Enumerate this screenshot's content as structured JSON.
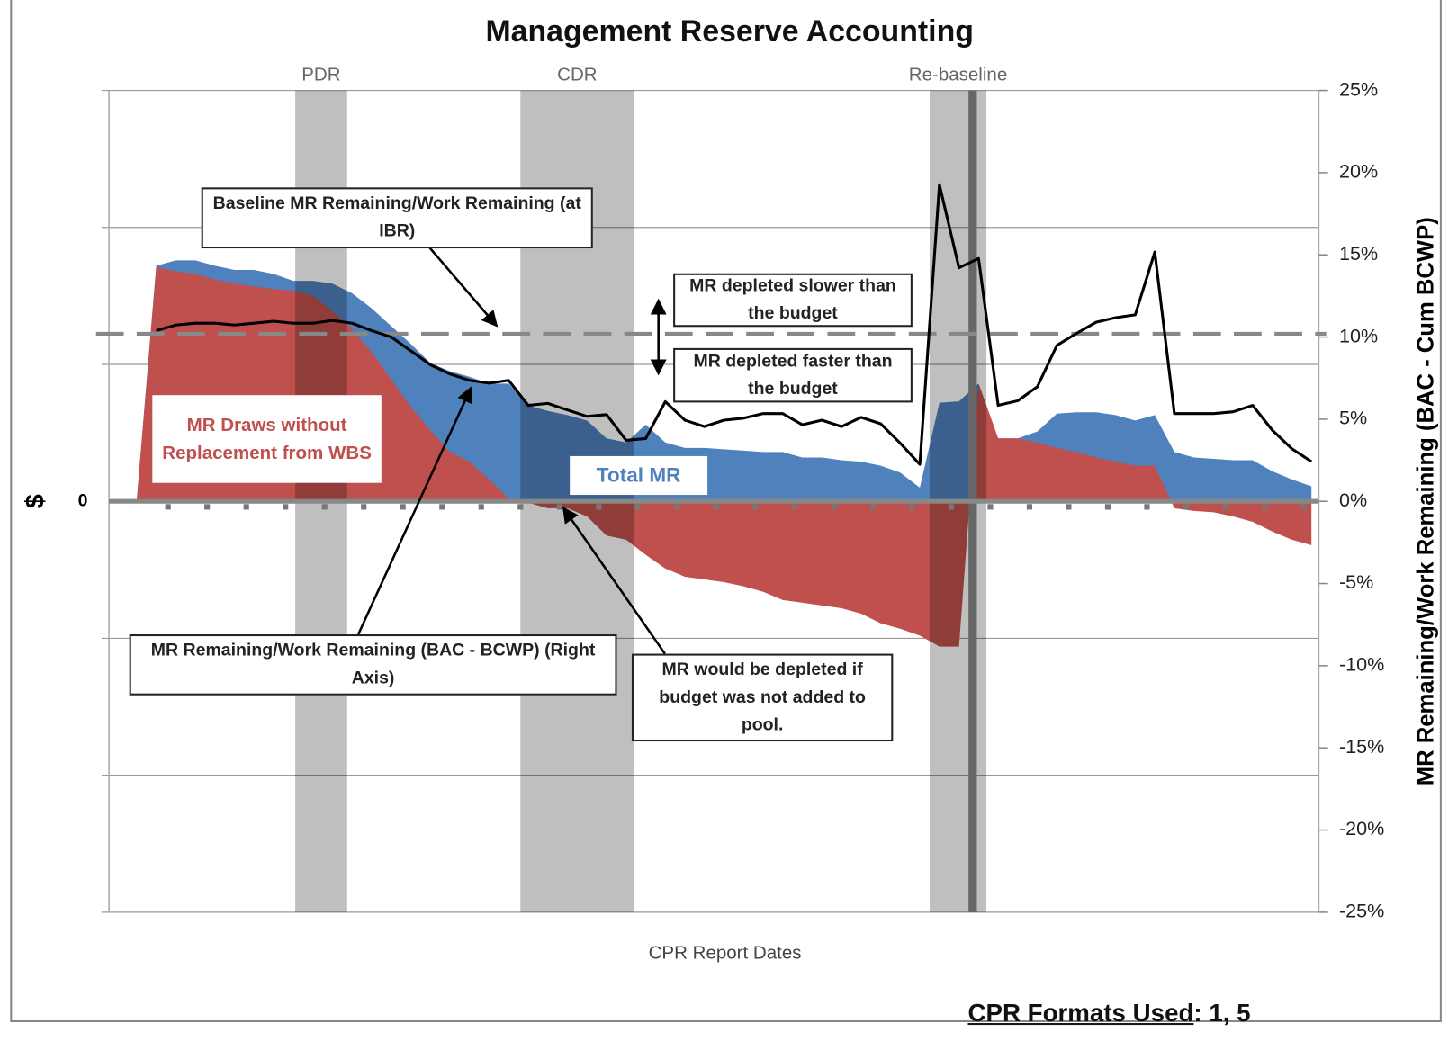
{
  "chart_data": {
    "type": "area",
    "title": "Management Reserve Accounting",
    "x_label": "CPR Report Dates",
    "y_label": "$",
    "y2_label": "MR Remaining/Work Remaining (BAC - Cum BCWP)",
    "categories": [
      null,
      null,
      null,
      null,
      null,
      null,
      null,
      null,
      null,
      null,
      null,
      null,
      null,
      null,
      null,
      null,
      null,
      null,
      null,
      null,
      null,
      null,
      null,
      null,
      null,
      null,
      null,
      null,
      null,
      null,
      null,
      null,
      null,
      null,
      null,
      null,
      null,
      null,
      null,
      null,
      null,
      null,
      null,
      null,
      null,
      null,
      null,
      null,
      null,
      null,
      null,
      null,
      null,
      null,
      null,
      null,
      null,
      null,
      null,
      null,
      null
    ],
    "ylim": [
      -3,
      3
    ],
    "yticks": [
      0
    ],
    "ygrid": [
      -3,
      -2,
      -1,
      1,
      2,
      3
    ],
    "y2lim": [
      -25,
      25
    ],
    "y2ticks": [
      {
        "value": 25,
        "label": "25%"
      },
      {
        "value": 20,
        "label": "20%"
      },
      {
        "value": 15,
        "label": "15%"
      },
      {
        "value": 10,
        "label": "10%"
      },
      {
        "value": 5,
        "label": "5%"
      },
      {
        "value": 0,
        "label": "0%"
      },
      {
        "value": -5,
        "label": "-5%"
      },
      {
        "value": -10,
        "label": "-10%"
      },
      {
        "value": -15,
        "label": "-15%"
      },
      {
        "value": -20,
        "label": "-20%"
      },
      {
        "value": -25,
        "label": "-25%"
      }
    ],
    "series": [
      {
        "name": "Total MR",
        "type": "area",
        "color": "#4f81bd",
        "values": [
          0,
          1.72,
          1.76,
          1.76,
          1.72,
          1.69,
          1.69,
          1.66,
          1.61,
          1.61,
          1.59,
          1.52,
          1.41,
          1.28,
          1.15,
          1.01,
          0.95,
          0.91,
          0.86,
          0.86,
          0.7,
          0.66,
          0.63,
          0.59,
          0.46,
          0.43,
          0.56,
          0.43,
          0.39,
          0.39,
          0.38,
          0.37,
          0.36,
          0.36,
          0.32,
          0.32,
          0.3,
          0.29,
          0.26,
          0.21,
          0.1,
          0.72,
          0.73,
          0.86,
          0.46,
          0.46,
          0.51,
          0.64,
          0.65,
          0.65,
          0.63,
          0.59,
          0.63,
          0.36,
          0.32,
          0.31,
          0.3,
          0.3,
          0.22,
          0.16,
          0.11
        ]
      },
      {
        "name": "MR Draws without Replacement from WBS",
        "type": "area",
        "color": "#c0504d",
        "values": [
          0,
          1.71,
          1.68,
          1.66,
          1.62,
          1.59,
          1.57,
          1.55,
          1.54,
          1.5,
          1.39,
          1.26,
          1.09,
          0.89,
          0.69,
          0.52,
          0.36,
          0.29,
          0.16,
          0.02,
          -0.01,
          -0.05,
          -0.05,
          -0.11,
          -0.25,
          -0.28,
          -0.39,
          -0.49,
          -0.55,
          -0.57,
          -0.59,
          -0.62,
          -0.66,
          -0.72,
          -0.74,
          -0.76,
          -0.78,
          -0.82,
          -0.89,
          -0.93,
          -0.98,
          -1.06,
          -1.06,
          0.86,
          0.46,
          0.46,
          0.43,
          0.39,
          0.36,
          0.32,
          0.29,
          0.26,
          0.26,
          -0.05,
          -0.07,
          -0.08,
          -0.11,
          -0.15,
          -0.22,
          -0.28,
          -0.32
        ]
      },
      {
        "name": "MR Remaining/Work Remaining (BAC - BCWP) (Right Axis)",
        "type": "line",
        "axis": "y2",
        "color": "#000000",
        "values": [
          null,
          10.39,
          10.73,
          10.84,
          10.84,
          10.73,
          10.84,
          10.96,
          10.84,
          10.84,
          11.01,
          10.84,
          10.39,
          10.0,
          9.16,
          8.31,
          7.75,
          7.36,
          7.19,
          7.36,
          5.84,
          5.96,
          5.56,
          5.17,
          5.28,
          3.71,
          3.82,
          6.07,
          4.94,
          4.55,
          4.94,
          5.06,
          5.34,
          5.34,
          4.66,
          4.94,
          4.55,
          5.11,
          4.72,
          3.54,
          2.25,
          19.27,
          14.21,
          14.78,
          5.84,
          6.12,
          6.97,
          9.49,
          10.22,
          10.9,
          11.18,
          11.35,
          15.17,
          5.34,
          5.34,
          5.34,
          5.45,
          5.84,
          4.33,
          3.2,
          2.42
        ]
      }
    ],
    "baseline": {
      "label": "Baseline MR Remaining/Work Remaining (at IBR)",
      "value": 10.2,
      "axis": "y2"
    },
    "milestones": [
      {
        "label": "PDR",
        "start": 8.1,
        "end": 10.75
      },
      {
        "label": "CDR",
        "start": 19.6,
        "end": 25.4
      },
      {
        "label": "Re-baseline",
        "start": 40.5,
        "end": 43.4,
        "line": 42.7
      }
    ],
    "annotations": [
      "MR depleted slower than the budget",
      "MR depleted faster than the budget",
      "MR would be depleted if budget was not added to pool."
    ]
  },
  "footer": {
    "label": "CPR Formats Used",
    "value": ": 1, 5"
  }
}
